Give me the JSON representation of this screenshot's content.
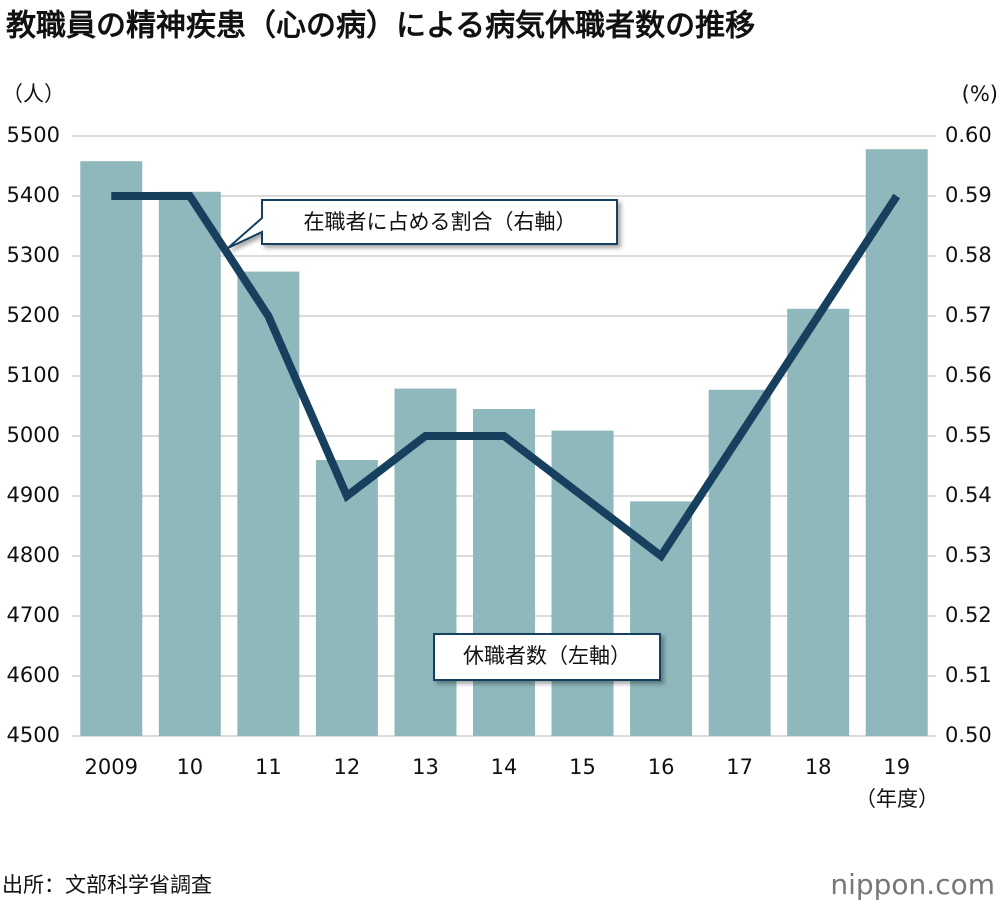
{
  "chart_data": {
    "type": "bar-line",
    "title": "教職員の精神疾患（心の病）による病気休職者数の推移",
    "y_unit": "（人）",
    "y2_unit": "(%)",
    "x_unit": "（年度）",
    "source": "出所：文部科学省調査",
    "logo": "nippon.com",
    "categories": [
      "2009",
      "10",
      "11",
      "12",
      "13",
      "14",
      "15",
      "16",
      "17",
      "18",
      "19"
    ],
    "series": [
      {
        "name": "休職者数（左軸）",
        "type": "bar",
        "color": "#8fb8bd",
        "axis": "y",
        "values": [
          5458,
          5407,
          5274,
          4960,
          5079,
          5045,
          5009,
          4891,
          5077,
          5212,
          5478
        ]
      },
      {
        "name": "在職者に占める割合（右軸）",
        "type": "line",
        "color": "#17405e",
        "axis": "y2",
        "values": [
          0.59,
          0.59,
          0.57,
          0.54,
          0.55,
          0.55,
          0.54,
          0.53,
          0.55,
          0.57,
          0.59
        ]
      }
    ],
    "ylim": [
      4500,
      5500
    ],
    "yticks": [
      4500,
      4600,
      4700,
      4800,
      4900,
      5000,
      5100,
      5200,
      5300,
      5400,
      5500
    ],
    "y2lim": [
      0.5,
      0.6
    ],
    "y2ticks": [
      {
        "value": 0.5,
        "label": "0.50"
      },
      0.51,
      0.52,
      0.53,
      0.54,
      0.55,
      0.56,
      0.57,
      0.58,
      0.59,
      {
        "value": 0.6,
        "label": "0.60"
      }
    ],
    "grid": true
  }
}
